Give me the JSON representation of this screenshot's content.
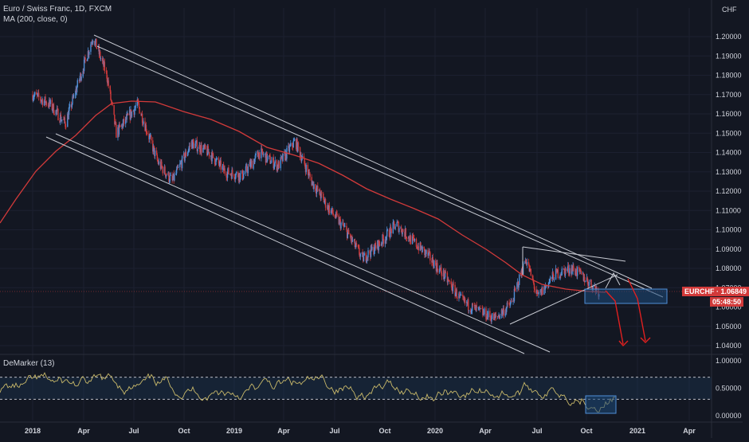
{
  "header": {
    "title": "Euro / Swiss Franc, 1D, FXCM",
    "indicator": "MA (200, close, 0)"
  },
  "price_axis": {
    "currency": "CHF",
    "ticks": [
      "1.20000",
      "1.19000",
      "1.18000",
      "1.17000",
      "1.16000",
      "1.15000",
      "1.14000",
      "1.13000",
      "1.12000",
      "1.11000",
      "1.10000",
      "1.09000",
      "1.08000",
      "1.07000",
      "1.06000",
      "1.05000",
      "1.04000"
    ]
  },
  "osc_axis": {
    "ticks": [
      "1.00000",
      "0.50000",
      "0.00000"
    ]
  },
  "oscillator": {
    "label": "DeMarker (13)"
  },
  "price_tag": {
    "symbol_value": "EURCHF · 1.06849",
    "countdown": "05:48:50"
  },
  "x_axis": {
    "labels": [
      "2018",
      "Apr",
      "Jul",
      "Oct",
      "2019",
      "Apr",
      "Jul",
      "Oct",
      "2020",
      "Apr",
      "Jul",
      "Oct",
      "2021",
      "Apr"
    ]
  },
  "colors": {
    "background": "#131722",
    "candle_up": "#4f8fd8",
    "candle_down": "#d23a3a",
    "ma": "#d23a3a",
    "oscillator": "#c9b96a",
    "channel": "#d1d4dc",
    "zone": "#1e4a7a"
  },
  "chart_data": {
    "type": "candlestick",
    "title": "Euro / Swiss Franc, 1D, FXCM",
    "price_range": [
      1.035,
      1.205
    ],
    "last_price": 1.06849,
    "ma_period": 200,
    "approx_close_path": [
      {
        "date": "2018-01-01",
        "close": 1.17
      },
      {
        "date": "2018-02-01",
        "close": 1.165
      },
      {
        "date": "2018-03-01",
        "close": 1.155
      },
      {
        "date": "2018-04-20",
        "close": 1.2
      },
      {
        "date": "2018-05-15",
        "close": 1.18
      },
      {
        "date": "2018-06-01",
        "close": 1.15
      },
      {
        "date": "2018-07-10",
        "close": 1.165
      },
      {
        "date": "2018-08-15",
        "close": 1.135
      },
      {
        "date": "2018-09-10",
        "close": 1.125
      },
      {
        "date": "2018-10-15",
        "close": 1.145
      },
      {
        "date": "2018-11-15",
        "close": 1.14
      },
      {
        "date": "2018-12-15",
        "close": 1.13
      },
      {
        "date": "2019-01-15",
        "close": 1.128
      },
      {
        "date": "2019-02-15",
        "close": 1.14
      },
      {
        "date": "2019-03-20",
        "close": 1.133
      },
      {
        "date": "2019-04-20",
        "close": 1.146
      },
      {
        "date": "2019-05-20",
        "close": 1.125
      },
      {
        "date": "2019-06-20",
        "close": 1.111
      },
      {
        "date": "2019-07-20",
        "close": 1.1
      },
      {
        "date": "2019-08-20",
        "close": 1.085
      },
      {
        "date": "2019-09-20",
        "close": 1.093
      },
      {
        "date": "2019-10-20",
        "close": 1.103
      },
      {
        "date": "2019-11-15",
        "close": 1.095
      },
      {
        "date": "2019-12-15",
        "close": 1.087
      },
      {
        "date": "2020-01-15",
        "close": 1.076
      },
      {
        "date": "2020-02-15",
        "close": 1.063
      },
      {
        "date": "2020-03-15",
        "close": 1.058
      },
      {
        "date": "2020-04-15",
        "close": 1.054
      },
      {
        "date": "2020-05-15",
        "close": 1.062
      },
      {
        "date": "2020-06-10",
        "close": 1.085
      },
      {
        "date": "2020-07-01",
        "close": 1.065
      },
      {
        "date": "2020-08-01",
        "close": 1.077
      },
      {
        "date": "2020-09-01",
        "close": 1.08
      },
      {
        "date": "2020-09-20",
        "close": 1.076
      },
      {
        "date": "2020-10-20",
        "close": 1.068
      }
    ]
  }
}
